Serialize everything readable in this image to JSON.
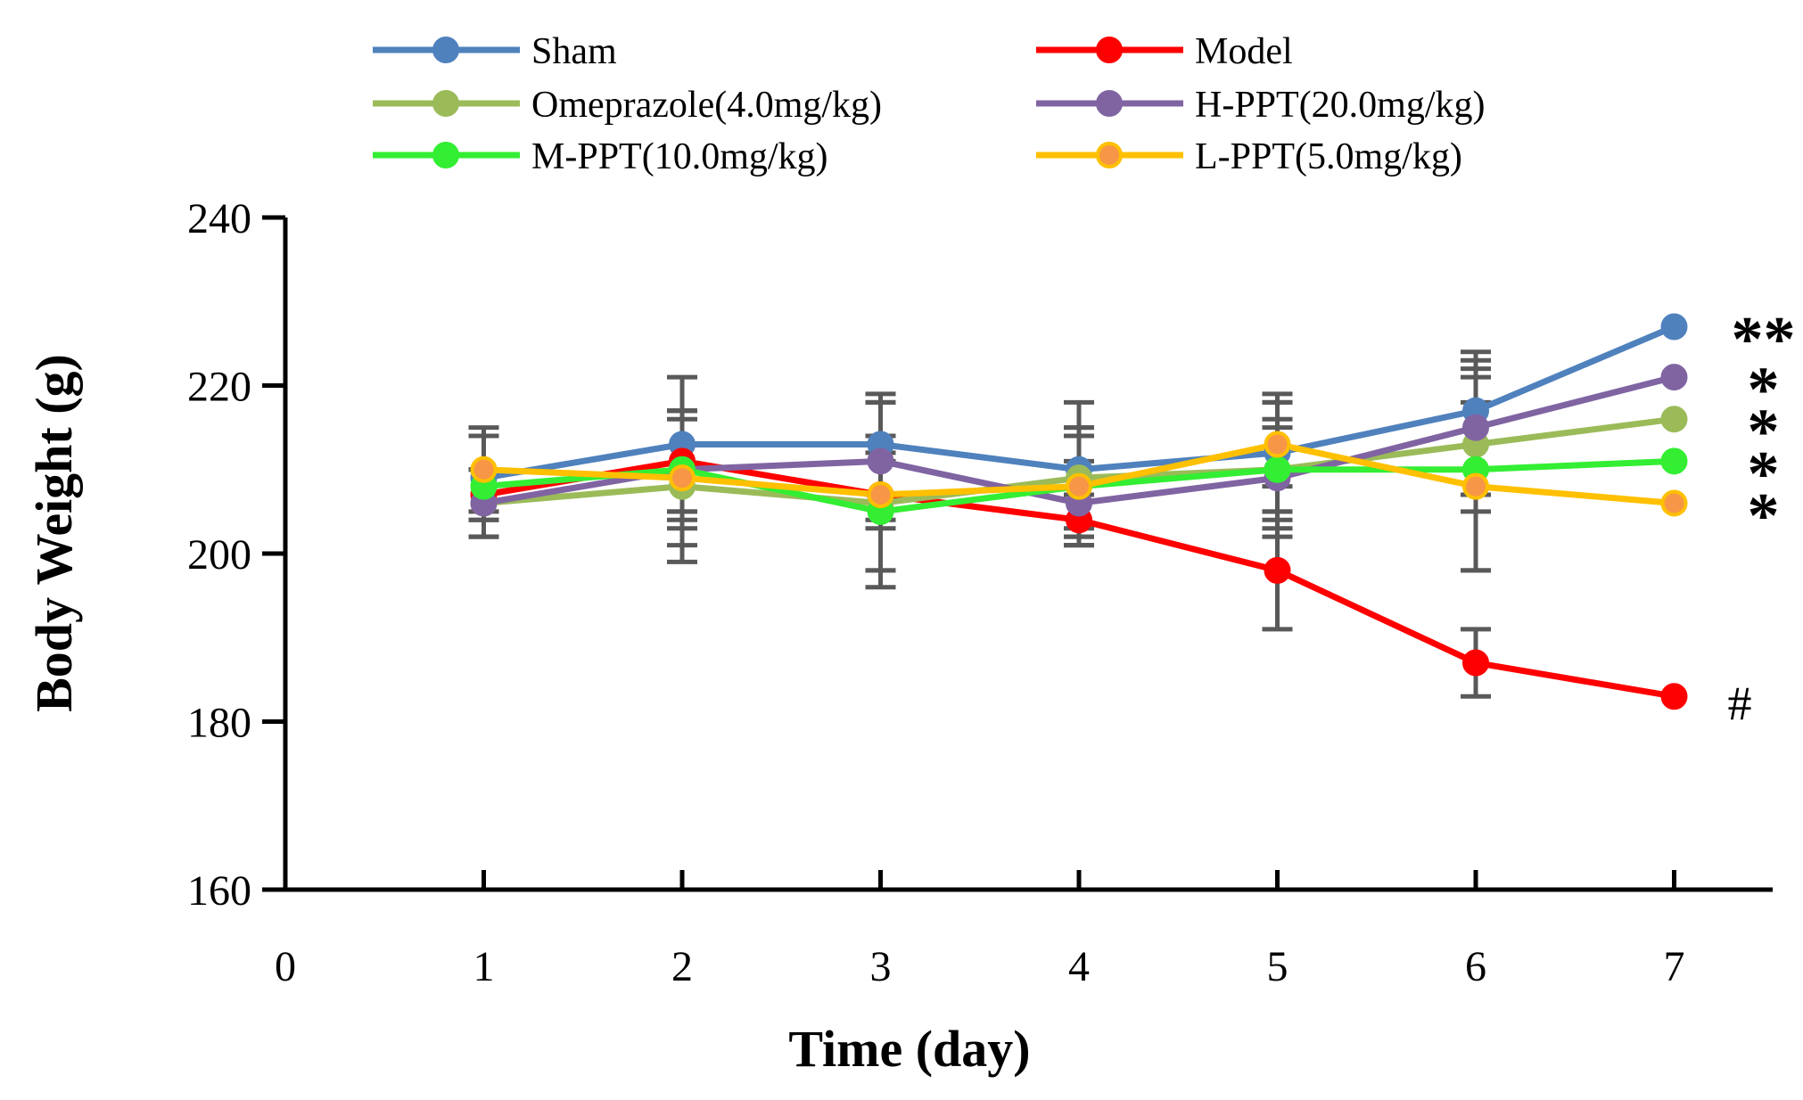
{
  "chart_data": {
    "type": "line",
    "title": "",
    "xlabel": "Time (day)",
    "ylabel": "Body Weight (g)",
    "xlim": [
      0,
      7.5
    ],
    "ylim": [
      160,
      240
    ],
    "xticks": [
      0,
      1,
      2,
      3,
      4,
      5,
      6,
      7
    ],
    "yticks": [
      160,
      180,
      200,
      220,
      240
    ],
    "x": [
      1,
      2,
      3,
      4,
      5,
      6,
      7
    ],
    "grid": false,
    "legend_position": "top",
    "error_bar_color": "#595959",
    "series": [
      {
        "name": "Sham",
        "color": "#4F81BD",
        "marker_fill": "#4F81BD",
        "values": [
          209,
          213,
          213,
          210,
          212,
          217,
          227
        ],
        "errors": [
          5,
          8,
          6,
          8,
          7,
          7,
          0
        ],
        "annotation": "**"
      },
      {
        "name": "Model",
        "color": "#FF0000",
        "marker_fill": "#FF0000",
        "values": [
          207,
          211,
          207,
          204,
          198,
          187,
          183
        ],
        "errors": [
          3,
          6,
          4,
          3,
          7,
          4,
          0
        ],
        "annotation": "#"
      },
      {
        "name": "Omeprazole(4.0mg/kg)",
        "color": "#9BBB59",
        "marker_fill": "#9BBB59",
        "values": [
          206,
          208,
          206,
          209,
          210,
          213,
          216
        ],
        "errors": [
          4,
          9,
          8,
          6,
          6,
          8,
          0
        ],
        "annotation": "*"
      },
      {
        "name": "H-PPT(20.0mg/kg)",
        "color": "#8064A2",
        "marker_fill": "#8064A2",
        "values": [
          206,
          210,
          211,
          206,
          209,
          215,
          221
        ],
        "errors": [
          4,
          7,
          7,
          5,
          6,
          8,
          0
        ],
        "annotation": "*"
      },
      {
        "name": "M-PPT(10.0mg/kg)",
        "color": "#33EE33",
        "marker_fill": "#33EE33",
        "values": [
          208,
          210,
          205,
          208,
          210,
          210,
          211
        ],
        "errors": [
          6,
          6,
          7,
          7,
          8,
          12,
          0
        ],
        "annotation": "*"
      },
      {
        "name": "L-PPT(5.0mg/kg)",
        "color": "#FFC000",
        "marker_fill": "#F79646",
        "values": [
          210,
          209,
          207,
          208,
          213,
          208,
          206
        ],
        "errors": [
          5,
          8,
          11,
          6,
          5,
          10,
          0
        ],
        "annotation": "*"
      }
    ]
  }
}
